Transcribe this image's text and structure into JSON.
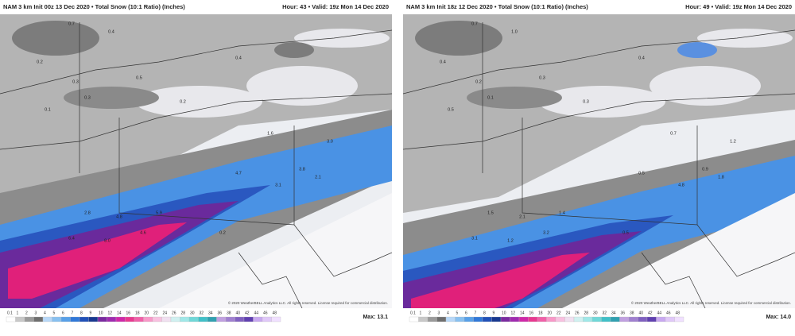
{
  "panels": [
    {
      "header": {
        "left": "NAM 3 km Init 00z 13 Dec 2020 • Total Snow (10:1 Ratio) (Inches)",
        "right": "Hour: 43 • Valid: 19z Mon 14 Dec 2020"
      },
      "map_labels": [
        "0.7",
        "0.4",
        "0.2",
        "0.3",
        "0.5",
        "0.1",
        "0.3",
        "0.2",
        "0.4",
        "1.6",
        "3.0",
        "4.7",
        "3.8",
        "5.9",
        "4.8",
        "2.8",
        "6.4",
        "8.0",
        "4.6",
        "3.1",
        "2.1",
        "0.2"
      ],
      "copyright": "© 2020 WeatherBELL Analytics LLC. All rights reserved. License required for commercial distribution.",
      "colorbar": [
        "0.1",
        "1",
        "2",
        "3",
        "4",
        "5",
        "6",
        "7",
        "8",
        "9",
        "10",
        "12",
        "14",
        "16",
        "18",
        "20",
        "22",
        "24",
        "26",
        "28",
        "30",
        "32",
        "34",
        "36",
        "38",
        "40",
        "42",
        "44",
        "46",
        "48"
      ],
      "max": "Max: 13.1"
    },
    {
      "header": {
        "left": "NAM 3 km Init 18z 12 Dec 2020 • Total Snow (10:1 Ratio) (Inches)",
        "right": "Hour: 49 • Valid: 19z Mon 14 Dec 2020"
      },
      "map_labels": [
        "0.7",
        "1.0",
        "0.4",
        "0.2",
        "0.3",
        "0.5",
        "0.1",
        "0.3",
        "0.4",
        "0.7",
        "1.2",
        "0.5",
        "0.9",
        "1.4",
        "2.1",
        "1.5",
        "3.1",
        "1.2",
        "3.2",
        "4.8",
        "1.8",
        "0.5"
      ],
      "copyright": "© 2020 WeatherBELL Analytics LLC. All rights reserved. License required for commercial distribution.",
      "colorbar": [
        "0.1",
        "1",
        "2",
        "3",
        "4",
        "5",
        "6",
        "7",
        "8",
        "9",
        "10",
        "12",
        "14",
        "16",
        "18",
        "20",
        "22",
        "24",
        "26",
        "28",
        "30",
        "32",
        "34",
        "36",
        "38",
        "40",
        "42",
        "44",
        "46",
        "48"
      ],
      "max": "Max: 14.0"
    }
  ]
}
